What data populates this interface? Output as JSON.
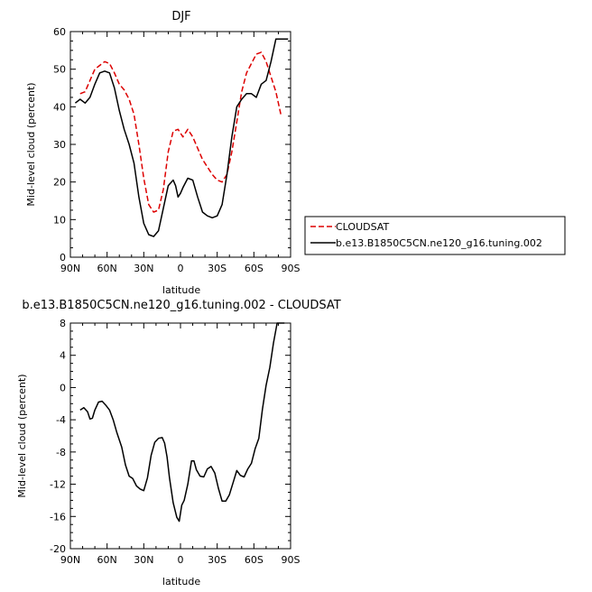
{
  "chart_data": [
    {
      "type": "line",
      "title": "DJF",
      "xlabel": "latitude",
      "ylabel": "Mid-level cloud (percent)",
      "x_ticks": [
        "90N",
        "60N",
        "30N",
        "0",
        "30S",
        "60S",
        "90S"
      ],
      "xlim": [
        90,
        -90
      ],
      "ylim": [
        0,
        60
      ],
      "y_ticks": [
        "0",
        "10",
        "20",
        "30",
        "40",
        "50",
        "60"
      ],
      "legend_placement": "right",
      "series": [
        {
          "name": "CLOUDSAT",
          "color": "#dd0000",
          "dash": "dashed",
          "x": [
            82,
            78,
            74,
            70,
            66,
            62,
            58,
            54,
            50,
            46,
            42,
            38,
            34,
            30,
            26,
            22,
            18,
            14,
            10,
            6,
            2,
            -2,
            -6,
            -10,
            -14,
            -18,
            -22,
            -26,
            -30,
            -34,
            -38,
            -42,
            -46,
            -50,
            -54,
            -58,
            -62,
            -66,
            -70,
            -74,
            -78,
            -82
          ],
          "y": [
            43.5,
            44,
            47,
            50,
            51,
            52,
            51.5,
            49,
            46,
            44.5,
            42,
            38,
            30,
            21,
            14,
            12,
            12.5,
            18,
            28,
            33.5,
            34,
            32,
            34,
            32,
            29,
            26,
            24,
            22,
            20.5,
            20,
            22,
            28,
            36,
            44,
            49,
            51.5,
            54,
            54.5,
            52,
            48,
            44,
            38
          ]
        },
        {
          "name": "b.e13.B1850C5CN.ne120_g16.tuning.002",
          "color": "#000000",
          "dash": "solid",
          "x": [
            86,
            82,
            78,
            74,
            70,
            66,
            62,
            58,
            54,
            50,
            46,
            42,
            38,
            34,
            30,
            26,
            22,
            18,
            14,
            10,
            6,
            4,
            2,
            0,
            -2,
            -6,
            -10,
            -14,
            -18,
            -22,
            -26,
            -30,
            -34,
            -38,
            -42,
            -46,
            -50,
            -54,
            -58,
            -62,
            -66,
            -70,
            -74,
            -78,
            -82,
            -86,
            -88
          ],
          "y": [
            41,
            42,
            41,
            42.5,
            46,
            49,
            49.5,
            49,
            45,
            39,
            34,
            30,
            25,
            16,
            9,
            6,
            5.5,
            7,
            13,
            19,
            20.5,
            19,
            16,
            17,
            18.5,
            21,
            20.5,
            16,
            12,
            11,
            10.5,
            11,
            14,
            22,
            32,
            40,
            42,
            43.5,
            43.5,
            42.5,
            46,
            47,
            52,
            58,
            58,
            58,
            58
          ]
        }
      ]
    },
    {
      "type": "line",
      "title": "b.e13.B1850C5CN.ne120_g16.tuning.002 - CLOUDSAT",
      "xlabel": "latitude",
      "ylabel": "Mid-level cloud (percent)",
      "x_ticks": [
        "90N",
        "60N",
        "30N",
        "0",
        "30S",
        "60S",
        "90S"
      ],
      "xlim": [
        90,
        -90
      ],
      "ylim": [
        -20,
        8
      ],
      "y_ticks": [
        "-20",
        "-16",
        "-12",
        "-8",
        "-4",
        "0",
        "4",
        "8"
      ],
      "series": [
        {
          "color": "#000000",
          "dash": "solid",
          "x": [
            82,
            79,
            76,
            74,
            72,
            70,
            67,
            64,
            61,
            58,
            55,
            52,
            48,
            45,
            42,
            39,
            36,
            33,
            30,
            27,
            24,
            21,
            18,
            15,
            13,
            11,
            9,
            6,
            3,
            1,
            -1,
            -3,
            -6,
            -9,
            -11,
            -13,
            -16,
            -19,
            -22,
            -25,
            -28,
            -31,
            -34,
            -37,
            -40,
            -43,
            -46,
            -49,
            -52,
            -55,
            -58,
            -61,
            -64,
            -67,
            -70,
            -73,
            -76,
            -79,
            -82,
            -84,
            -85
          ],
          "y": [
            -2.8,
            -2.5,
            -3.0,
            -3.9,
            -3.8,
            -2.8,
            -1.8,
            -1.7,
            -2.2,
            -2.8,
            -4.0,
            -5.6,
            -7.4,
            -9.6,
            -11.0,
            -11.3,
            -12.2,
            -12.6,
            -12.8,
            -11.2,
            -8.4,
            -6.8,
            -6.3,
            -6.2,
            -6.9,
            -8.6,
            -11.2,
            -14.3,
            -16.1,
            -16.6,
            -14.6,
            -14.0,
            -12.0,
            -9.1,
            -9.1,
            -10.2,
            -11.0,
            -11.1,
            -10.1,
            -9.8,
            -10.6,
            -12.5,
            -14.1,
            -14.1,
            -13.3,
            -11.8,
            -10.3,
            -10.9,
            -11.1,
            -10.1,
            -9.4,
            -7.6,
            -6.3,
            -2.7,
            0.3,
            2.5,
            5.5,
            8.0,
            8.0,
            8.0,
            8.0
          ]
        }
      ]
    }
  ]
}
